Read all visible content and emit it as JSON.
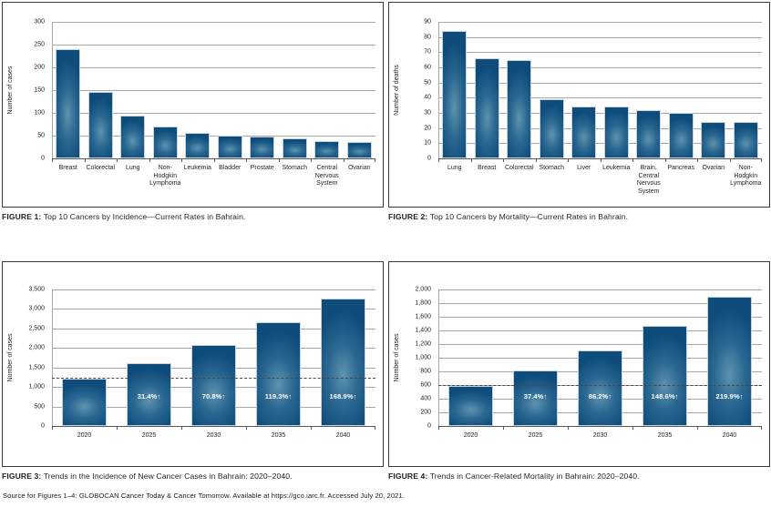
{
  "figures": [
    {
      "label": "FIGURE 1:",
      "caption": "Top 10 Cancers by Incidence—Current Rates in Bahrain."
    },
    {
      "label": "FIGURE 2:",
      "caption": "Top 10 Cancers by Mortality—Current Rates in Bahrain."
    },
    {
      "label": "FIGURE 3:",
      "caption": "Trends in the Incidence of New Cancer Cases in Bahrain: 2020–2040."
    },
    {
      "label": "FIGURE 4:",
      "caption": "Trends in Cancer-Related Mortality in Bahrain: 2020–2040."
    }
  ],
  "source_note": "Source for Figures 1–4: GLOBOCAN Cancer Today & Cancer Tomorrow. Available at https://gco.iarc.fr. Accessed July 20, 2021.",
  "colors": {
    "bar": "#0d4c7b",
    "bar_mid": "#2a6791",
    "bar_glow": "#5e93ae",
    "gridline": "#a7a8aa",
    "axis": "#58595b",
    "dashed_line": "#47484a",
    "bar_label_text": "#ffffff",
    "text": "#231f20"
  },
  "chart_data": [
    {
      "type": "bar",
      "figure": "Figure 1",
      "ylabel": "Number of cases",
      "xlabel": "",
      "ylim": [
        0,
        300
      ],
      "ytick_step": 50,
      "ytick_values": [
        300,
        250,
        200,
        150,
        100,
        50,
        0
      ],
      "ytick_labels": [
        "300",
        "250",
        "200",
        "150",
        "100",
        "50",
        "0"
      ],
      "categories": [
        "Breast",
        "Colorectal",
        "Lung",
        "Non-Hodgkin\nLymphoma",
        "Leukemia",
        "Bladder",
        "Prostate",
        "Stomach",
        "Central\nNervous\nSystem",
        "Ovarian"
      ],
      "values": [
        241,
        146,
        95,
        70,
        56,
        51,
        49,
        44,
        39,
        36
      ],
      "bar_labels": null,
      "dashed_line_at": null,
      "grid": true,
      "legend": false
    },
    {
      "type": "bar",
      "figure": "Figure 2",
      "ylabel": "Number of deaths",
      "xlabel": "",
      "ylim": [
        0,
        90
      ],
      "ytick_step": 10,
      "ytick_values": [
        90,
        80,
        70,
        60,
        50,
        40,
        30,
        20,
        10,
        0
      ],
      "ytick_labels": [
        "90",
        "80",
        "70",
        "60",
        "50",
        "40",
        "30",
        "20",
        "10",
        "0"
      ],
      "categories": [
        "Lung",
        "Breast",
        "Colorectal",
        "Stomach",
        "Liver",
        "Leukemia",
        "Brain,\nCentral\nNervous\nSystem",
        "Pancreas",
        "Ovarian",
        "Non-\nHodgkin\nLymphoma"
      ],
      "values": [
        84,
        66,
        65,
        39,
        34,
        34,
        32,
        30,
        24,
        24
      ],
      "bar_labels": null,
      "dashed_line_at": null,
      "grid": true,
      "legend": false
    },
    {
      "type": "bar",
      "figure": "Figure 3",
      "ylabel": "Number of cases",
      "xlabel": "",
      "ylim": [
        0,
        3500
      ],
      "ytick_step": 500,
      "ytick_values": [
        3500,
        3000,
        2500,
        2000,
        1500,
        1000,
        500,
        0
      ],
      "ytick_labels": [
        "3,500",
        "3,000",
        "2,500",
        "2,000",
        "1,500",
        "1,000",
        "500",
        "0"
      ],
      "categories": [
        "2020",
        "2025",
        "2030",
        "2035",
        "2040"
      ],
      "values": [
        1218,
        1600,
        2080,
        2671,
        3275
      ],
      "bar_labels": [
        "",
        "31.4%↑",
        "70.8%↑",
        "119.3%↑",
        "168.9%↑"
      ],
      "dashed_line_at": 1218,
      "grid": true,
      "legend": false
    },
    {
      "type": "bar",
      "figure": "Figure 4",
      "ylabel": "Number of cases",
      "xlabel": "",
      "ylim": [
        0,
        2000
      ],
      "ytick_step": 200,
      "ytick_values": [
        2000,
        1800,
        1600,
        1400,
        1200,
        1000,
        800,
        600,
        400,
        200,
        0
      ],
      "ytick_labels": [
        "2,000",
        "1,800",
        "1,600",
        "1,400",
        "1,200",
        "1,000",
        "800",
        "600",
        "400",
        "200",
        "0"
      ],
      "categories": [
        "2020",
        "2025",
        "2030",
        "2035",
        "2040"
      ],
      "values": [
        593,
        815,
        1104,
        1474,
        1897
      ],
      "bar_labels": [
        "",
        "37.4%↑",
        "86.2%↑",
        "148.6%↑",
        "219.9%↑"
      ],
      "dashed_line_at": 593,
      "grid": true,
      "legend": false
    }
  ]
}
